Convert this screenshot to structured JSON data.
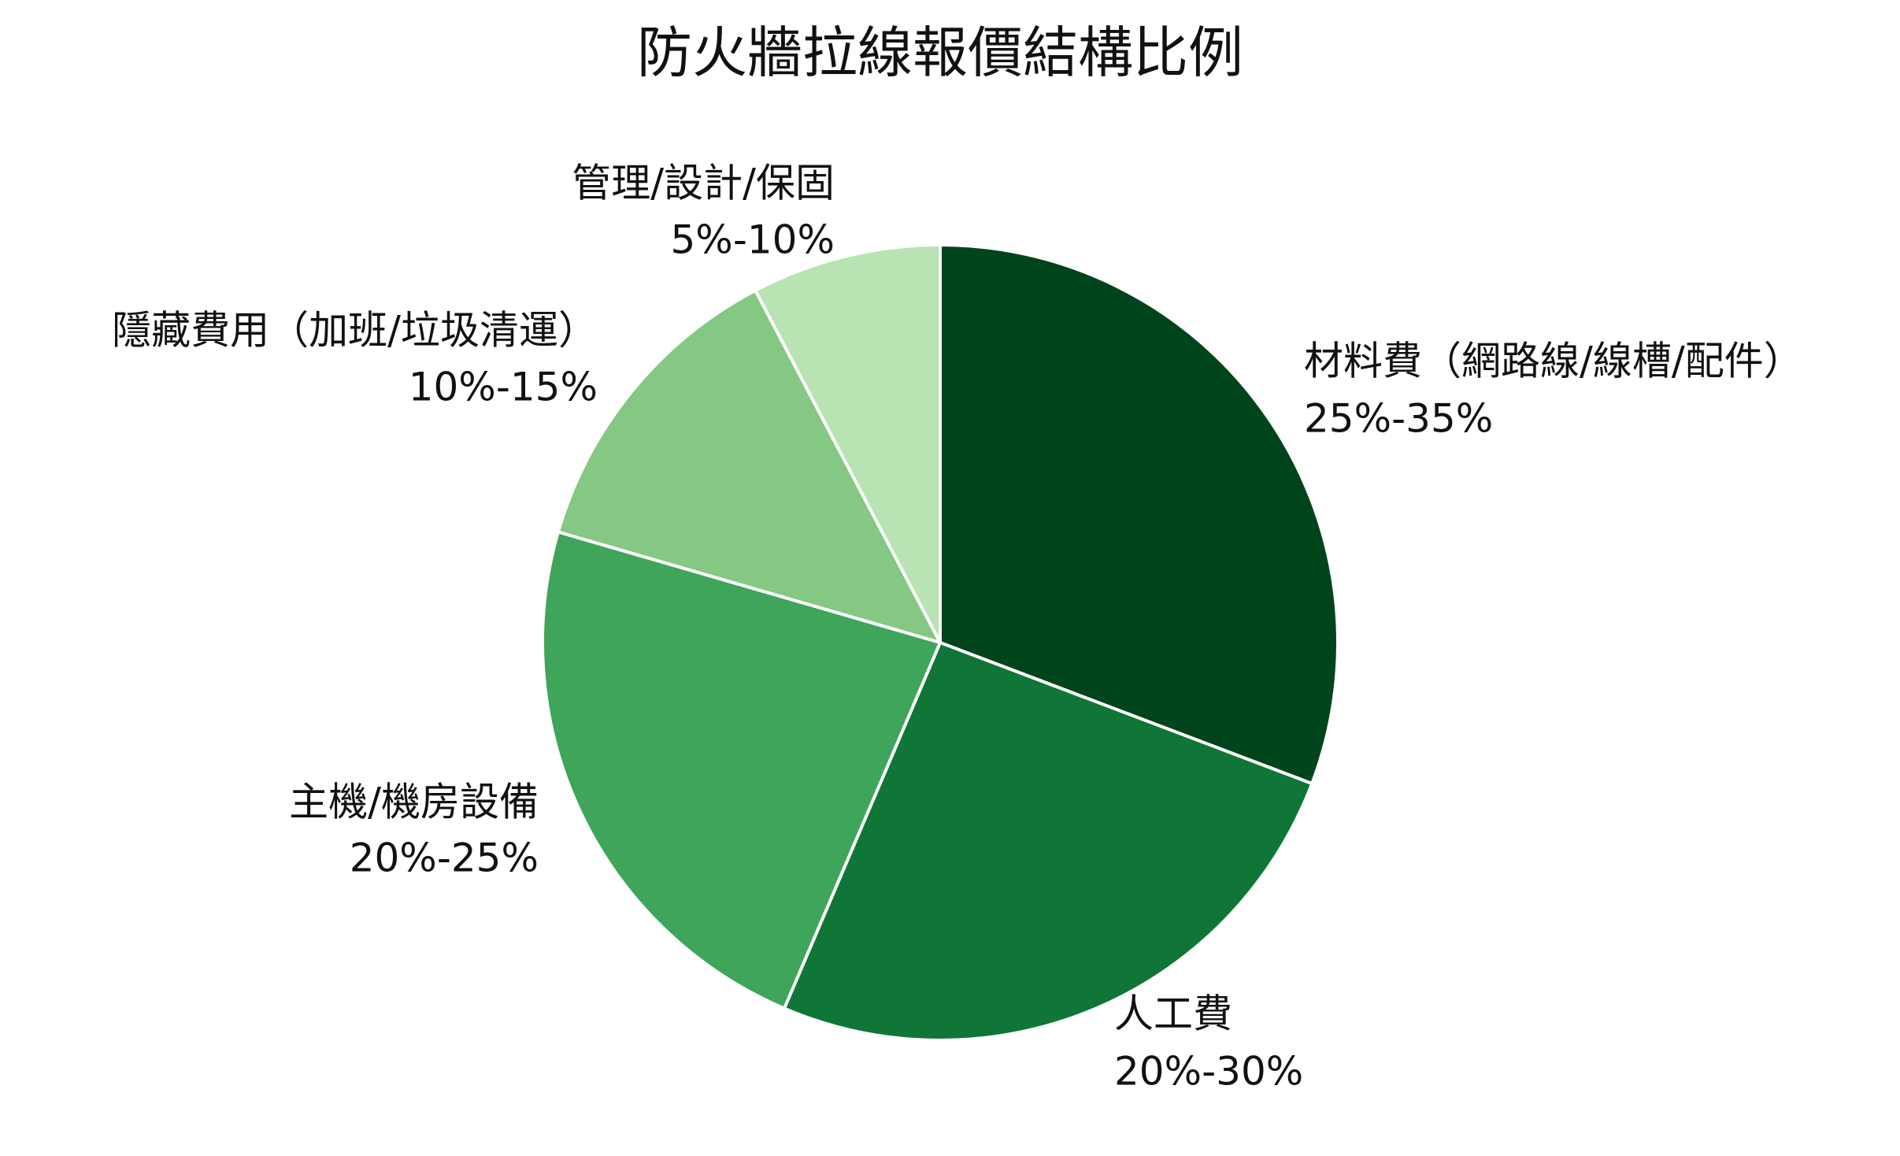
{
  "chart_data": {
    "type": "pie",
    "title": "防火牆拉線報價結構比例",
    "categories": [
      "材料費（網路線/線槽/配件）",
      "人工費",
      "主機/機房設備",
      "隱藏費用（加班/垃圾清運）",
      "管理/設計/保固"
    ],
    "ranges": [
      "25%-35%",
      "20%-30%",
      "20%-25%",
      "10%-15%",
      "5%-10%"
    ],
    "values": [
      30,
      25,
      22.5,
      12.5,
      7.5
    ],
    "colors": [
      "#00441b",
      "#0f7637",
      "#3fa55a",
      "#84c884",
      "#b8e3b2"
    ]
  }
}
